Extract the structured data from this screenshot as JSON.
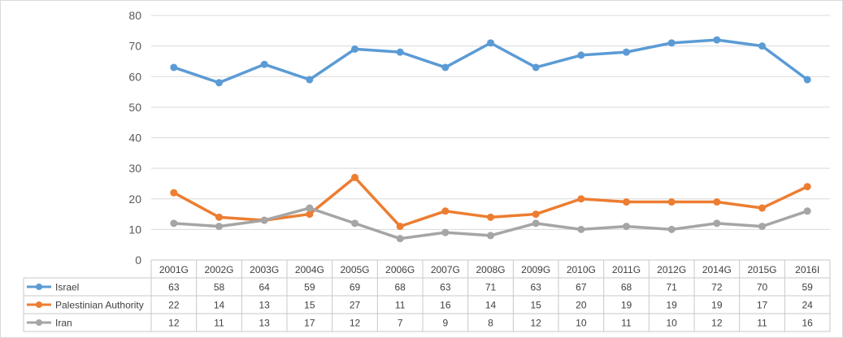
{
  "chart_data": {
    "type": "line",
    "categories": [
      "2001G",
      "2002G",
      "2003G",
      "2004G",
      "2005G",
      "2006G",
      "2007G",
      "2008G",
      "2009G",
      "2010G",
      "2011G",
      "2012G",
      "2014G",
      "2015G",
      "2016I"
    ],
    "ylim": [
      0,
      80
    ],
    "yticks": [
      0,
      10,
      20,
      30,
      40,
      50,
      60,
      70,
      80
    ],
    "grid": true,
    "legend": "data-table",
    "series": [
      {
        "name": "Israel",
        "color": "#5b9bd5",
        "values": [
          63,
          58,
          64,
          59,
          69,
          68,
          63,
          71,
          63,
          67,
          68,
          71,
          72,
          70,
          59
        ]
      },
      {
        "name": "Palestinian Authority",
        "color": "#ed7d31",
        "values": [
          22,
          14,
          13,
          15,
          27,
          11,
          16,
          14,
          15,
          20,
          19,
          19,
          19,
          17,
          24
        ]
      },
      {
        "name": "Iran",
        "color": "#a5a5a5",
        "values": [
          12,
          11,
          13,
          17,
          12,
          7,
          9,
          8,
          12,
          10,
          11,
          10,
          12,
          11,
          16
        ]
      }
    ]
  }
}
